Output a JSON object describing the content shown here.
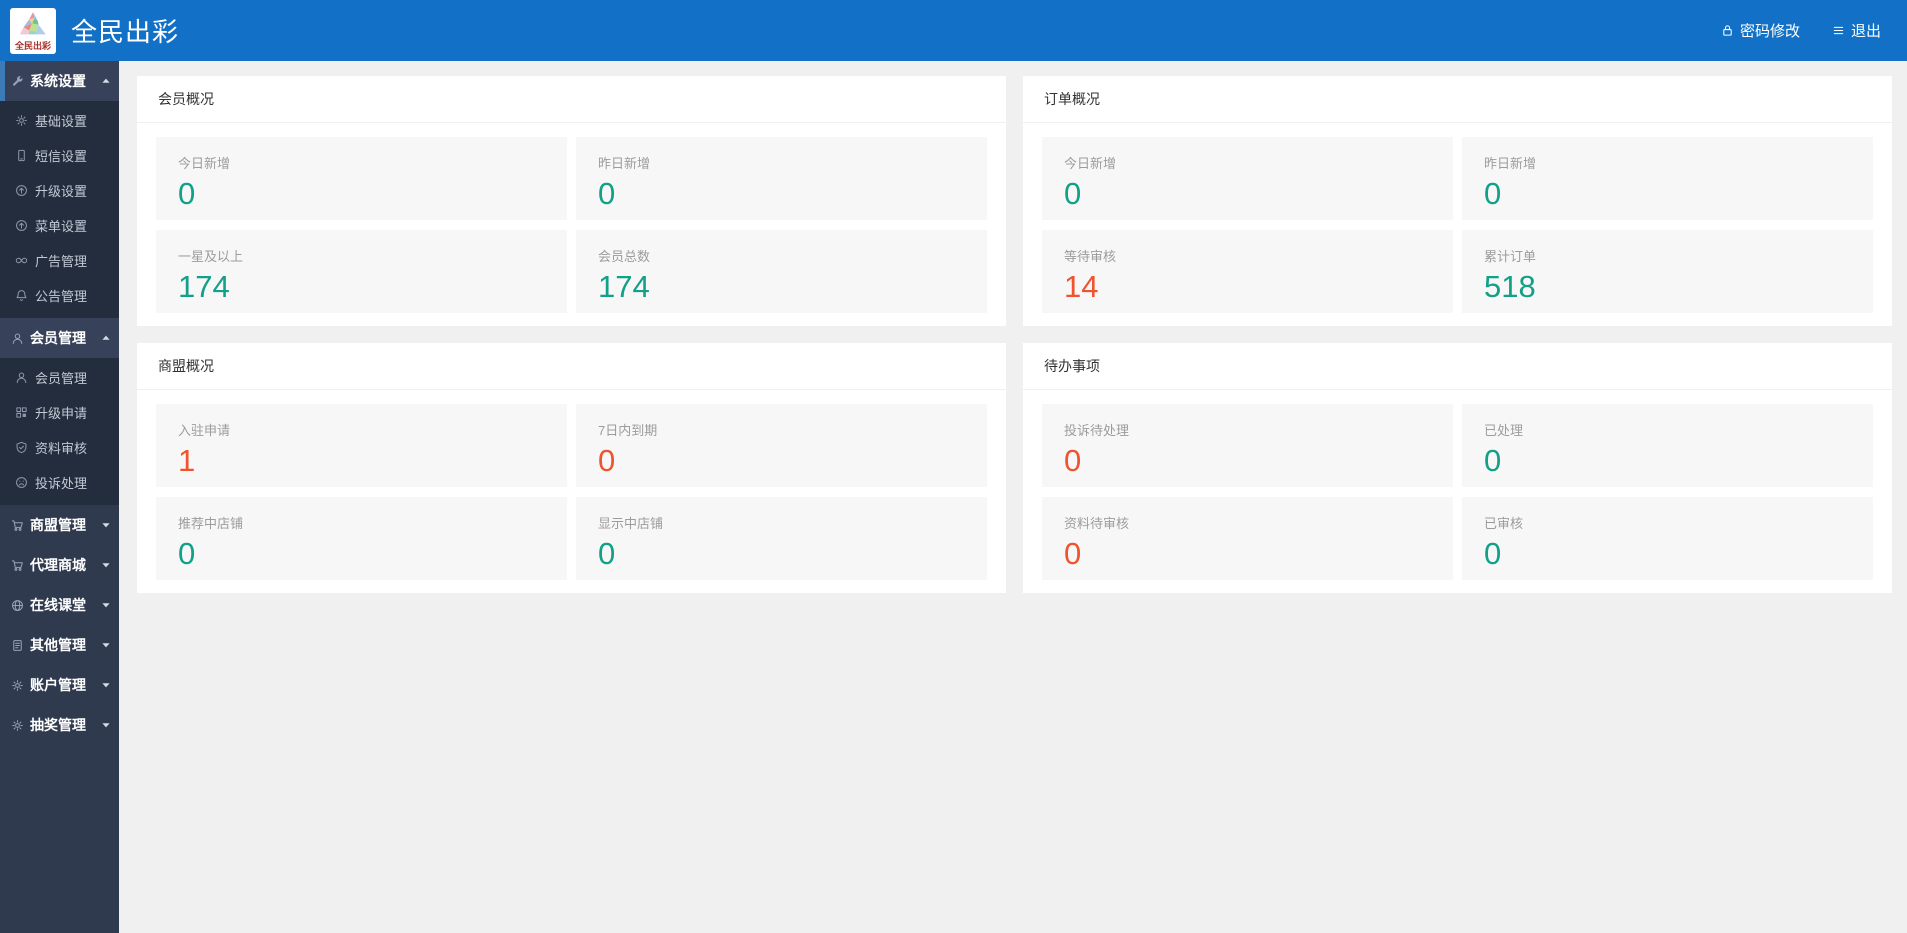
{
  "colors": {
    "topbar_blue": "#1271c6",
    "sidebar_bg": "#2f3a4f",
    "sidebar_sub_bg": "#232d3d",
    "sidebar_open_bg": "#37425a",
    "active_accent": "#3d7ab8",
    "teal": "#12a087",
    "red": "#f0542f",
    "page_bg": "#f0f0f0"
  },
  "topbar": {
    "brand": "全民出彩",
    "logo_text": "全民出彩",
    "actions": [
      {
        "label": "密码修改",
        "icon": "lock-icon"
      },
      {
        "label": "退出",
        "icon": "logout-icon"
      }
    ]
  },
  "sidebar": {
    "groups": [
      {
        "label": "系统设置",
        "icon": "wrench-icon",
        "state": "expanded",
        "active": true,
        "children": [
          {
            "label": "基础设置",
            "icon": "gear-icon"
          },
          {
            "label": "短信设置",
            "icon": "phone-icon"
          },
          {
            "label": "升级设置",
            "icon": "arrow-up-circle-icon"
          },
          {
            "label": "菜单设置",
            "icon": "arrow-up-circle-icon"
          },
          {
            "label": "广告管理",
            "icon": "infinity-icon"
          },
          {
            "label": "公告管理",
            "icon": "bell-icon"
          }
        ]
      },
      {
        "label": "会员管理",
        "icon": "user-icon",
        "state": "expanded",
        "active": false,
        "children": [
          {
            "label": "会员管理",
            "icon": "user-icon"
          },
          {
            "label": "升级申请",
            "icon": "grid-icon"
          },
          {
            "label": "资料审核",
            "icon": "shield-check-icon"
          },
          {
            "label": "投诉处理",
            "icon": "sad-face-icon"
          }
        ]
      },
      {
        "label": "商盟管理",
        "icon": "cart-icon",
        "state": "collapsed",
        "active": false,
        "children": []
      },
      {
        "label": "代理商城",
        "icon": "cart-icon",
        "state": "collapsed",
        "active": false,
        "children": []
      },
      {
        "label": "在线课堂",
        "icon": "globe-icon",
        "state": "collapsed",
        "active": false,
        "children": []
      },
      {
        "label": "其他管理",
        "icon": "document-icon",
        "state": "collapsed",
        "active": false,
        "children": []
      },
      {
        "label": "账户管理",
        "icon": "gear-icon",
        "state": "collapsed",
        "active": false,
        "children": []
      },
      {
        "label": "抽奖管理",
        "icon": "gear-icon",
        "state": "collapsed",
        "active": false,
        "children": []
      }
    ]
  },
  "cards": [
    {
      "title": "会员概况",
      "stats": [
        {
          "label": "今日新增",
          "value": "0",
          "color": "teal"
        },
        {
          "label": "昨日新增",
          "value": "0",
          "color": "teal"
        },
        {
          "label": "一星及以上",
          "value": "174",
          "color": "teal"
        },
        {
          "label": "会员总数",
          "value": "174",
          "color": "teal"
        }
      ]
    },
    {
      "title": "订单概况",
      "stats": [
        {
          "label": "今日新增",
          "value": "0",
          "color": "teal"
        },
        {
          "label": "昨日新增",
          "value": "0",
          "color": "teal"
        },
        {
          "label": "等待审核",
          "value": "14",
          "color": "red"
        },
        {
          "label": "累计订单",
          "value": "518",
          "color": "teal"
        }
      ]
    },
    {
      "title": "商盟概况",
      "stats": [
        {
          "label": "入驻申请",
          "value": "1",
          "color": "red"
        },
        {
          "label": "7日内到期",
          "value": "0",
          "color": "red"
        },
        {
          "label": "推荐中店铺",
          "value": "0",
          "color": "teal"
        },
        {
          "label": "显示中店铺",
          "value": "0",
          "color": "teal"
        }
      ]
    },
    {
      "title": "待办事项",
      "stats": [
        {
          "label": "投诉待处理",
          "value": "0",
          "color": "red"
        },
        {
          "label": "已处理",
          "value": "0",
          "color": "teal"
        },
        {
          "label": "资料待审核",
          "value": "0",
          "color": "red"
        },
        {
          "label": "已审核",
          "value": "0",
          "color": "teal"
        }
      ]
    }
  ]
}
